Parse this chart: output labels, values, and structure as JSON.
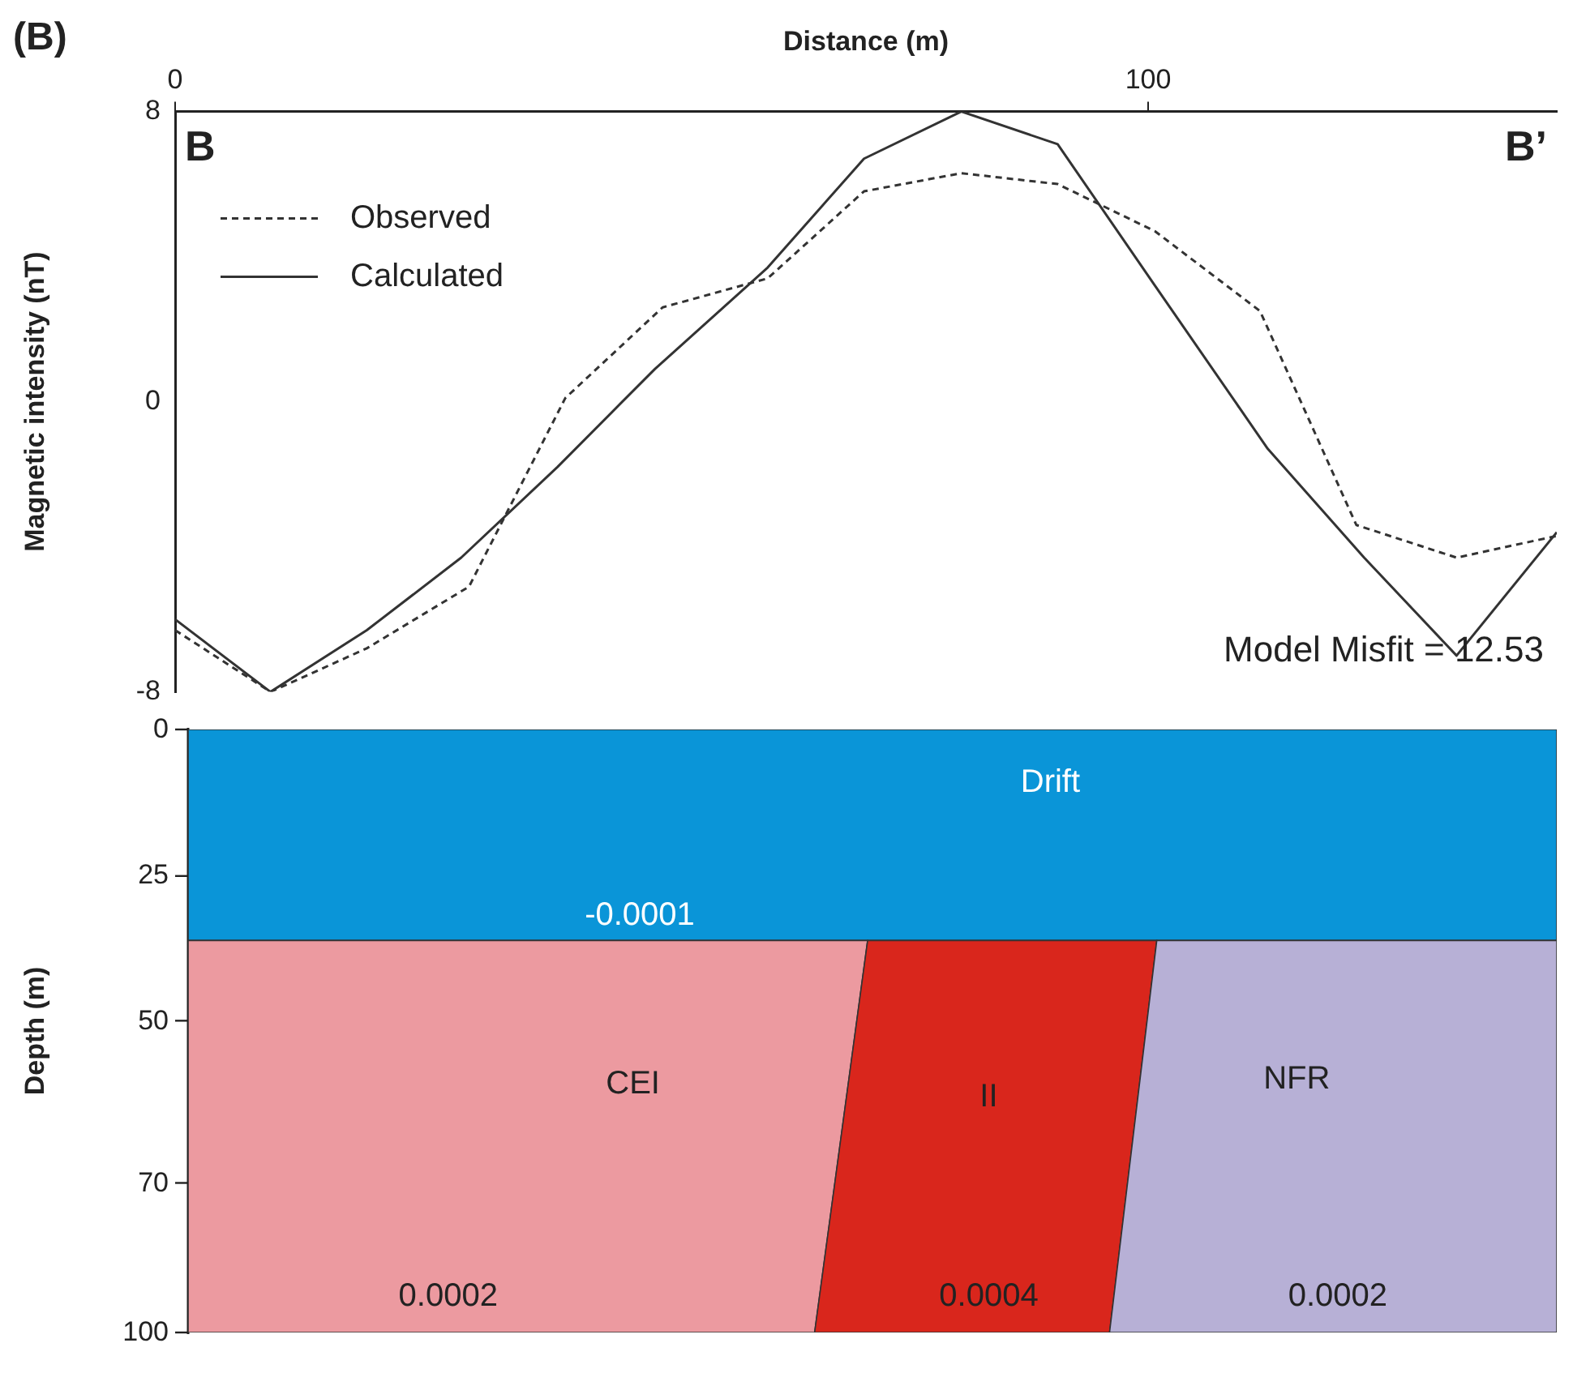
{
  "chart_data": [
    {
      "type": "line",
      "title": "(B)",
      "xlabel": "Distance (m)",
      "ylabel": "Magnetic intensity (nT)",
      "xlim": [
        0,
        142
      ],
      "xticks": [
        0,
        100
      ],
      "ylim": [
        -8,
        8
      ],
      "yticks": [
        -8,
        0,
        8
      ],
      "grid": false,
      "legend": "top left",
      "marker": "none",
      "annotations": [
        "B",
        "B’",
        "Model Misfit = 12.53"
      ],
      "series": [
        {
          "name": "Observed",
          "color": "#333333",
          "line_style": "dashed",
          "x": [
            0,
            9.8,
            19.7,
            30.2,
            40.1,
            50.1,
            60.9,
            70.8,
            80.8,
            90.7,
            100.7,
            111.5,
            121.4,
            131.7,
            142
          ],
          "values": [
            -6.3,
            -8.0,
            -6.8,
            -5.1,
            0.1,
            2.6,
            3.4,
            5.8,
            6.3,
            6.0,
            4.7,
            2.5,
            -3.4,
            -4.3,
            -3.7
          ]
        },
        {
          "name": "Calculated",
          "color": "#333333",
          "line_style": "solid",
          "x": [
            0,
            9.8,
            19.7,
            29.4,
            39.3,
            49.3,
            60.9,
            70.8,
            80.8,
            90.7,
            100.7,
            112.3,
            122.2,
            131.7,
            142
          ],
          "values": [
            -6.0,
            -8.0,
            -6.3,
            -4.3,
            -1.8,
            0.9,
            3.7,
            6.7,
            8.0,
            7.1,
            3.2,
            -1.3,
            -4.3,
            -7.0,
            -3.6
          ]
        }
      ]
    },
    {
      "type": "other",
      "ylabel": "Depth (m)",
      "annotations": [
        "0",
        "25",
        "50",
        "70",
        "100",
        "Drift",
        "-0.0001",
        "CEI",
        "II",
        "NFR",
        "0.0002",
        "0.0004",
        "0.0002"
      ]
    }
  ]
}
